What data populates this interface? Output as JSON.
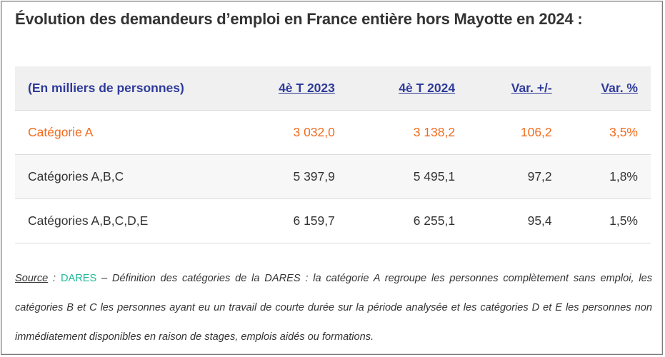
{
  "title": "Évolution des demandeurs d’emploi en France entière hors Mayotte en 2024 :",
  "table": {
    "headers": [
      "(En milliers de personnes)",
      "4è T 2023",
      "4è T 2024",
      "Var. +/-",
      "Var. %"
    ],
    "rows": [
      [
        "Catégorie A",
        "3 032,0",
        "3 138,2",
        "106,2",
        "3,5%"
      ],
      [
        "Catégories A,B,C",
        "5 397,9",
        "5 495,1",
        "97,2",
        "1,8%"
      ],
      [
        "Catégories A,B,C,D,E",
        "6 159,7",
        "6 255,1",
        "95,4",
        "1,5%"
      ]
    ]
  },
  "colors": {
    "header_text": "#2f3b9a",
    "highlight_row": "#f26b1d",
    "dares_link": "#1fb89a"
  },
  "note": {
    "source_label": "Source",
    "colon": " : ",
    "source_link": "DARES",
    "text": " – Définition des catégories de la DARES : la catégorie A regroupe les personnes complètement sans emploi, les catégories B et C les personnes ayant eu un travail de courte durée sur la période analysée et les catégories D et E les personnes non immédiatement disponibles en raison de stages, emplois aidés ou formations."
  }
}
